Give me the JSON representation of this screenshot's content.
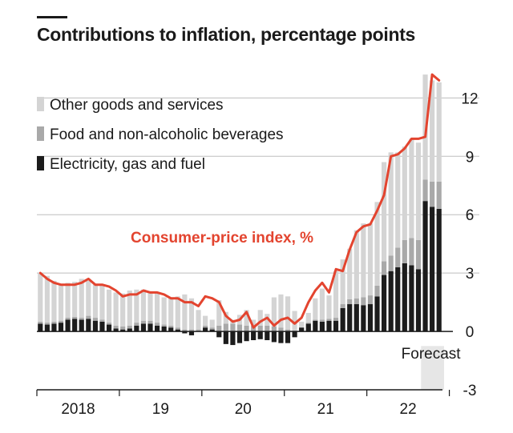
{
  "title": "Contributions to inflation, percentage points",
  "colors": {
    "other": "#d4d4d4",
    "food": "#a9a9a9",
    "energy": "#1c1c1c",
    "cpi": "#e3442f",
    "forecast_band": "#e6e6e6",
    "grid": "#bdbdbd",
    "zero": "#1a1a1a"
  },
  "chart_data": {
    "type": "bar",
    "stacked": true,
    "frequency": "monthly",
    "start": "2018-01",
    "title": "Contributions to inflation, percentage points",
    "xlabel": "",
    "ylabel": "",
    "ylim": [
      -3,
      13
    ],
    "yticks": [
      12,
      9,
      6,
      3,
      0,
      -3
    ],
    "x_tick_labels": [
      "2018",
      "19",
      "20",
      "21",
      "22"
    ],
    "legend": [
      "Other goods and services",
      "Food and non-alcoholic beverages",
      "Electricity, gas and fuel"
    ],
    "line_label": "Consumer-price index, %",
    "annotation": "Forecast",
    "forecast_from_index": 56,
    "forecast_to_index": 59,
    "series": [
      {
        "name": "Electricity, gas and fuel",
        "values": [
          0.4,
          0.35,
          0.4,
          0.45,
          0.6,
          0.65,
          0.6,
          0.65,
          0.55,
          0.5,
          0.35,
          0.15,
          0.1,
          0.15,
          0.3,
          0.4,
          0.4,
          0.3,
          0.25,
          0.2,
          0.1,
          -0.1,
          -0.2,
          0.0,
          0.2,
          0.1,
          -0.3,
          -0.65,
          -0.7,
          -0.6,
          -0.5,
          -0.45,
          -0.4,
          -0.45,
          -0.55,
          -0.6,
          -0.6,
          -0.3,
          0.2,
          0.4,
          0.55,
          0.5,
          0.55,
          0.55,
          1.2,
          1.4,
          1.4,
          1.35,
          1.4,
          1.8,
          2.9,
          3.1,
          3.3,
          3.5,
          3.4,
          3.2,
          6.7,
          6.4,
          6.3
        ]
      },
      {
        "name": "Food and non-alcoholic beverages",
        "values": [
          0.1,
          0.1,
          0.1,
          0.1,
          0.1,
          0.1,
          0.1,
          0.15,
          0.15,
          0.1,
          0.1,
          0.15,
          0.15,
          0.15,
          0.15,
          0.15,
          0.15,
          0.15,
          0.1,
          0.1,
          0.1,
          0.1,
          0.1,
          0.1,
          0.1,
          0.1,
          0.3,
          0.4,
          0.4,
          0.35,
          0.3,
          0.3,
          0.3,
          0.3,
          0.25,
          0.2,
          0.1,
          0.05,
          0.0,
          0.05,
          0.05,
          0.1,
          0.1,
          0.15,
          0.2,
          0.25,
          0.3,
          0.4,
          0.45,
          0.55,
          0.7,
          0.8,
          1.0,
          1.2,
          1.4,
          1.5,
          1.1,
          1.3,
          1.4
        ]
      },
      {
        "name": "Other goods and services",
        "values": [
          2.5,
          2.4,
          2.1,
          1.9,
          1.8,
          1.8,
          2.0,
          1.8,
          1.7,
          1.8,
          1.7,
          1.7,
          1.7,
          1.8,
          1.7,
          1.6,
          1.5,
          1.5,
          1.4,
          1.4,
          1.6,
          1.8,
          1.6,
          1.0,
          0.5,
          0.4,
          1.3,
          0.6,
          0.2,
          0.5,
          0.8,
          0.3,
          0.8,
          0.6,
          1.5,
          1.7,
          1.7,
          1.0,
          0.3,
          0.5,
          1.1,
          1.6,
          1.2,
          2.4,
          2.3,
          2.6,
          3.5,
          3.8,
          3.7,
          4.3,
          5.1,
          5.3,
          4.9,
          4.8,
          5.1,
          5.0,
          5.4,
          5.2,
          5.1
        ]
      },
      {
        "name": "Consumer-price index, %",
        "type": "line",
        "values": [
          3.0,
          2.7,
          2.5,
          2.4,
          2.4,
          2.4,
          2.5,
          2.7,
          2.4,
          2.4,
          2.3,
          2.1,
          1.8,
          1.9,
          1.9,
          2.1,
          2.0,
          2.0,
          1.9,
          1.7,
          1.7,
          1.5,
          1.5,
          1.3,
          1.8,
          1.7,
          1.5,
          0.8,
          0.5,
          0.6,
          1.0,
          0.2,
          0.5,
          0.7,
          0.3,
          0.6,
          0.7,
          0.4,
          0.7,
          1.5,
          2.1,
          2.5,
          2.0,
          3.2,
          3.1,
          4.2,
          5.1,
          5.4,
          5.5,
          6.2,
          7.0,
          9.0,
          9.1,
          9.4,
          9.9,
          9.9,
          10.0,
          13.2,
          12.9
        ]
      }
    ]
  }
}
